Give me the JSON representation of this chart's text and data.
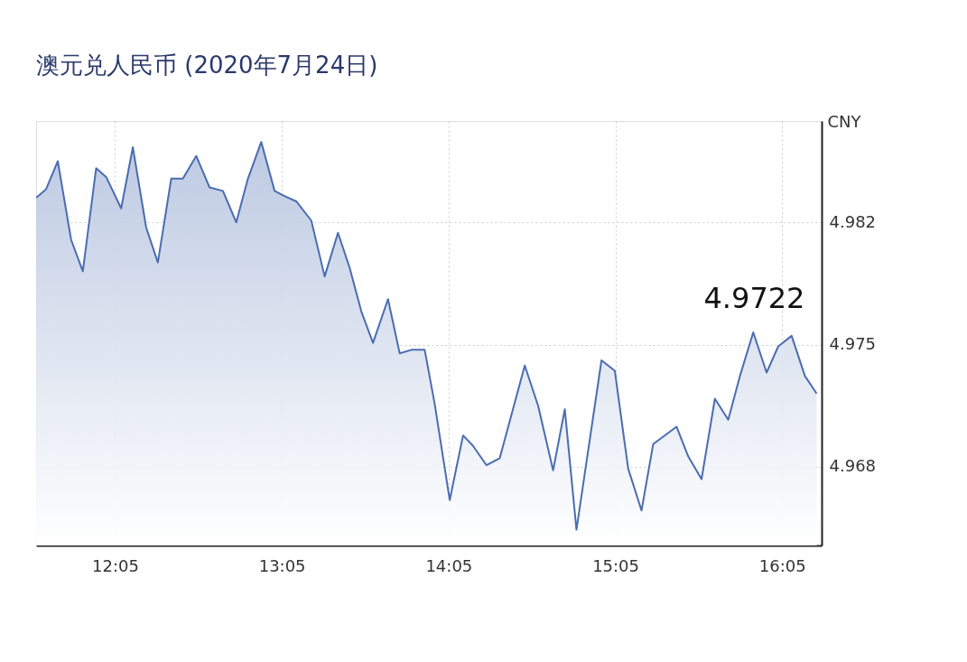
{
  "chart_data": {
    "type": "area",
    "title": "澳元兑人民币 (2020年7月24日)",
    "ylabel": "CNY",
    "x": [
      11.61,
      11.67,
      11.74,
      11.82,
      11.89,
      11.97,
      12.03,
      12.12,
      12.19,
      12.27,
      12.34,
      12.42,
      12.49,
      12.57,
      12.65,
      12.73,
      12.81,
      12.88,
      12.96,
      13.04,
      13.1,
      13.17,
      13.26,
      13.34,
      13.42,
      13.49,
      13.56,
      13.63,
      13.72,
      13.79,
      13.86,
      13.94,
      14.0,
      14.09,
      14.17,
      14.23,
      14.31,
      14.39,
      14.54,
      14.62,
      14.71,
      14.78,
      14.85,
      15.0,
      15.08,
      15.16,
      15.24,
      15.31,
      15.45,
      15.52,
      15.6,
      15.68,
      15.76,
      15.83,
      15.91,
      15.99,
      16.06,
      16.14,
      16.22,
      16.29
    ],
    "series": [
      {
        "color": "#4a6db0",
        "values": [
          4.9834,
          4.9839,
          4.9855,
          4.981,
          4.9792,
          4.9851,
          4.9846,
          4.9828,
          4.9863,
          4.9817,
          4.9797,
          4.9845,
          4.9845,
          4.9858,
          4.984,
          4.9838,
          4.982,
          4.9845,
          4.9866,
          4.9838,
          4.9835,
          4.9832,
          4.9821,
          4.9789,
          4.9814,
          4.9794,
          4.9769,
          4.9751,
          4.9776,
          4.9745,
          4.9747,
          4.9747,
          4.9716,
          4.9661,
          4.9698,
          4.9692,
          4.9681,
          4.9685,
          4.9738,
          4.9715,
          4.9678,
          4.9713,
          4.9644,
          4.9741,
          4.9735,
          4.9679,
          4.9655,
          4.9693,
          4.9703,
          4.9686,
          4.9673,
          4.9719,
          4.9707,
          4.9732,
          4.9757,
          4.9734,
          4.9749,
          4.9755,
          4.9732,
          4.9722
        ]
      }
    ],
    "xlim": [
      11.61,
      16.32
    ],
    "ylim": [
      4.9635,
      4.9878
    ],
    "xticks": [
      {
        "value": 12.0833,
        "label": "12:05"
      },
      {
        "value": 13.0833,
        "label": "13:05"
      },
      {
        "value": 14.0833,
        "label": "14:05"
      },
      {
        "value": 15.0833,
        "label": "15:05"
      },
      {
        "value": 16.0833,
        "label": "16:05"
      }
    ],
    "yticks": [
      4.968,
      4.975,
      4.982
    ],
    "annotations": [
      {
        "text": "4.9722",
        "x": 16.29,
        "y": 4.9722
      }
    ],
    "grid": true
  }
}
